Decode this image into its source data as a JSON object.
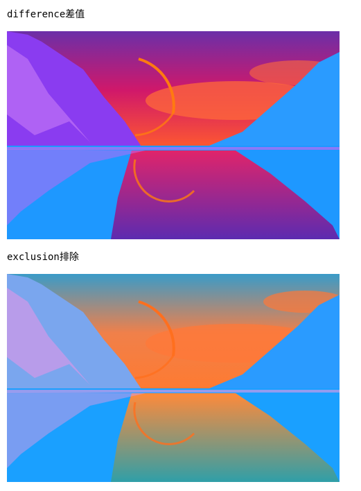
{
  "sections": [
    {
      "label": "difference差值",
      "blend_mode": "difference",
      "palette": {
        "sky_top": "#6b2fa8",
        "sky_mid": "#d0186a",
        "sky_low": "#ff5a2e",
        "moon_ring": "#ff7a10",
        "cloud": "#ff6a3a",
        "trees": "#8a3cf0",
        "trees_light": "#b86cf5",
        "mountain_right": "#2a9bff",
        "water": "#1e98ff",
        "reflection": "#e0246a",
        "reflection_dark": "#5c2bb0"
      }
    },
    {
      "label": "exclusion排除",
      "blend_mode": "exclusion",
      "palette": {
        "sky_top": "#3a9bc8",
        "sky_mid": "#f0804a",
        "sky_low": "#ff7a30",
        "moon_ring": "#ff6f1e",
        "cloud": "#ff7838",
        "trees": "#7aa6ee",
        "trees_light": "#c89ae8",
        "mountain_right": "#2a9bff",
        "water": "#1aa0ff",
        "reflection": "#ff8a3a",
        "reflection_dark": "#2f9fa8"
      }
    }
  ]
}
